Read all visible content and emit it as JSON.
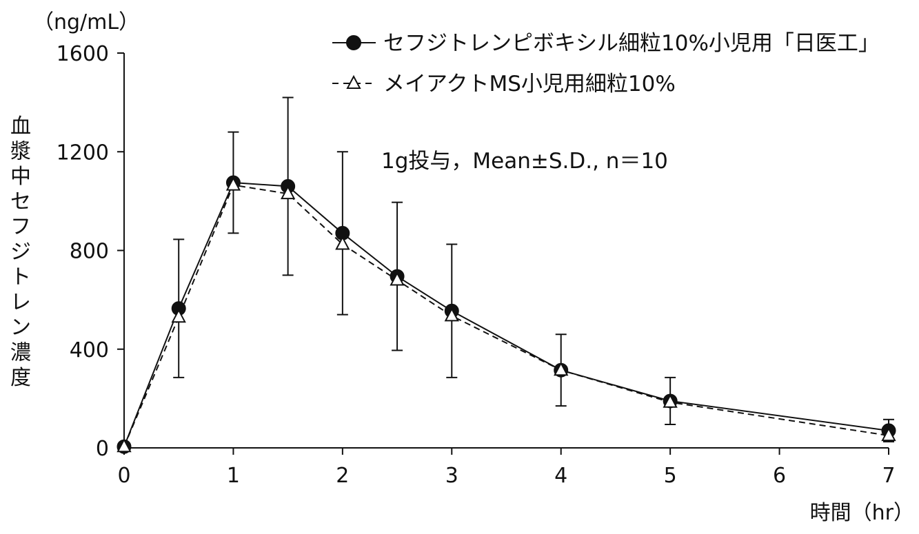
{
  "chart_data": {
    "type": "line",
    "y_unit": "（ng/mL）",
    "ylabel": "血漿中セフジトレン濃度",
    "xlabel": "時間（hr）",
    "annotation": "1g投与，Mean±S.D., n＝10",
    "xlim": [
      0,
      7
    ],
    "ylim": [
      0,
      1600
    ],
    "x_ticks": [
      "0",
      "1",
      "2",
      "3",
      "4",
      "5",
      "6",
      "7"
    ],
    "y_ticks": [
      "0",
      "400",
      "800",
      "1200",
      "1600"
    ],
    "grid": false,
    "legend_position": "top-right",
    "x": [
      0,
      0.5,
      1,
      1.5,
      2,
      2.5,
      3,
      4,
      5,
      7
    ],
    "series": [
      {
        "name": "セフジトレンピボキシル細粒10%小児用「日医工」",
        "marker": "filled-circle",
        "line_style": "solid",
        "color": "#111111",
        "values": [
          5,
          565,
          1075,
          1060,
          870,
          695,
          555,
          315,
          190,
          70
        ],
        "error": [
          0,
          280,
          205,
          360,
          330,
          300,
          270,
          145,
          95,
          45
        ]
      },
      {
        "name": "メイアクトMS小児用細粒10%",
        "marker": "open-triangle",
        "line_style": "dashed",
        "color": "#111111",
        "values": [
          5,
          530,
          1065,
          1030,
          825,
          680,
          535,
          315,
          185,
          50
        ],
        "error": []
      }
    ]
  }
}
